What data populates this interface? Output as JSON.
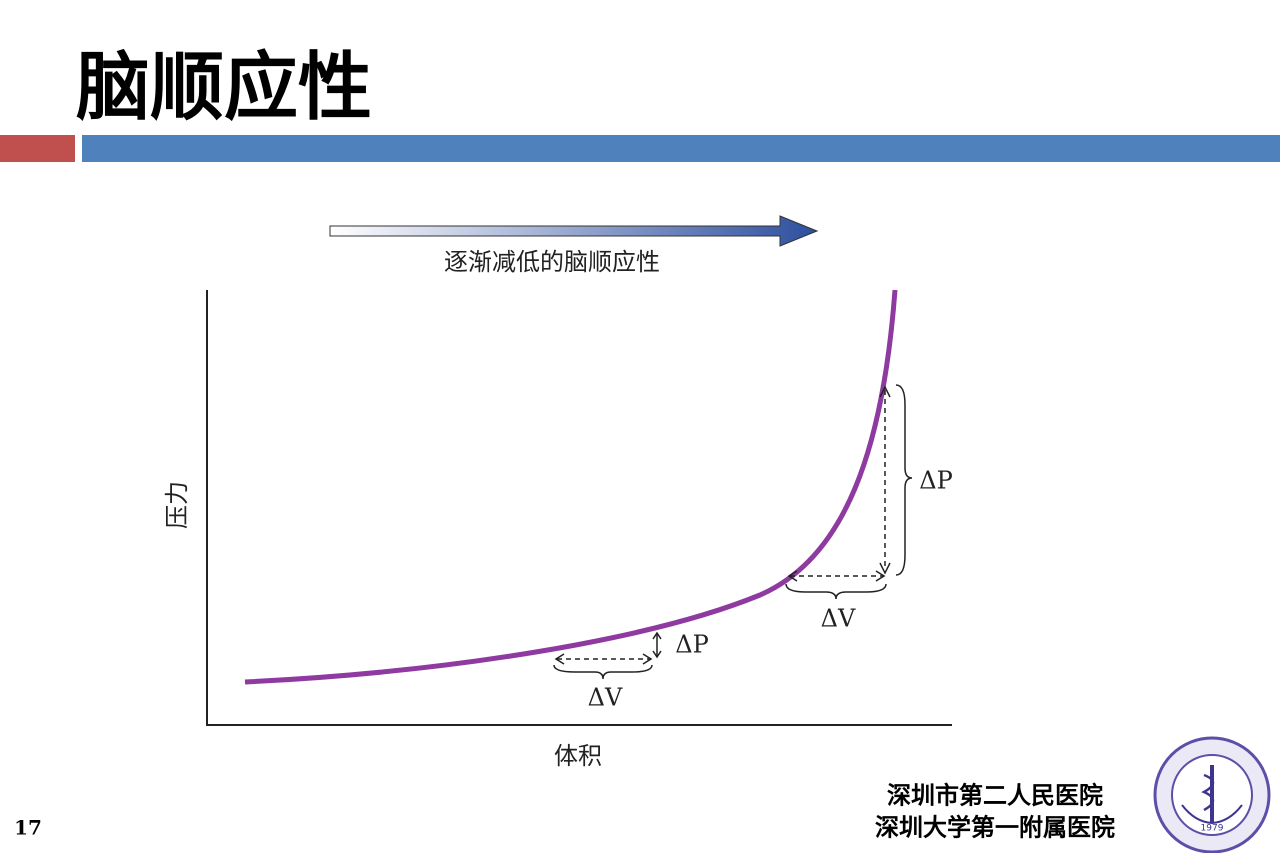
{
  "header": {
    "title": "脑顺应性"
  },
  "diagram": {
    "arrow_label": "逐渐减低的脑顺应性",
    "y_axis_label": "压力",
    "x_axis_label": "体积",
    "annotations": [
      {
        "dp": "ΔP",
        "dv": "ΔV"
      },
      {
        "dp": "ΔP",
        "dv": "ΔV"
      }
    ]
  },
  "footer": {
    "page_number": "17",
    "hospital_line_1": "深圳市第二人民医院",
    "hospital_line_2": "深圳大学第一附属医院",
    "logo_year": "1979"
  }
}
